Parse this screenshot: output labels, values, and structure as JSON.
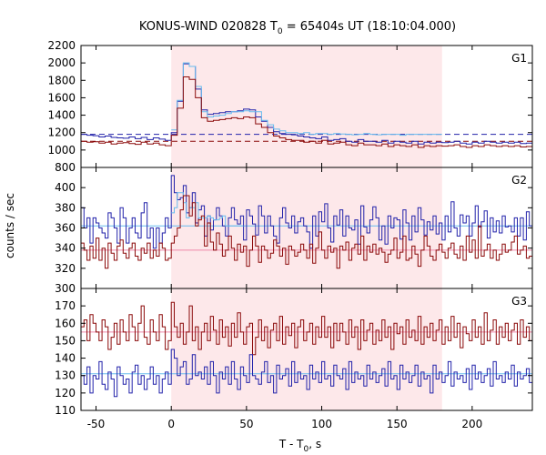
{
  "chart_data": {
    "type": "line",
    "title": {
      "prefix": "KONUS-WIND 020828 T",
      "sub": "0",
      "suffix": " = 65404s UT (18:10:04.000)"
    },
    "xlabel": {
      "prefix": "T - T",
      "sub": "0",
      "suffix": ", s"
    },
    "ylabel": "counts / sec",
    "xlim": [
      -60,
      240
    ],
    "xticks": [
      -50,
      0,
      50,
      100,
      150,
      200
    ],
    "highlight_interval": [
      0,
      180
    ],
    "colors": {
      "dark_red": "#8b0a0a",
      "navy": "#2222aa",
      "light_blue": "#66bbee",
      "pink_line": "#ee88aa",
      "highlight": "#fde8ea"
    },
    "panels": [
      {
        "label": "G1",
        "ylim": [
          800,
          2200
        ],
        "yticks": [
          800,
          1000,
          1200,
          1400,
          1600,
          1800,
          2000,
          2200
        ],
        "background_levels": [
          {
            "value": 1180,
            "color": "navy"
          },
          {
            "value": 1100,
            "color": "dark_red"
          }
        ],
        "bin_width": 4,
        "series": [
          {
            "color": "navy",
            "step_start": -60,
            "values": [
              1180,
              1170,
              1165,
              1150,
              1160,
              1145,
              1140,
              1135,
              1150,
              1130,
              1145,
              1120,
              1140,
              1125,
              1110,
              1200,
              1560,
              1990,
              1960,
              1700,
              1460,
              1410,
              1420,
              1430,
              1440,
              1440,
              1450,
              1470,
              1460,
              1380,
              1330,
              1260,
              1210,
              1190,
              1180,
              1175,
              1160,
              1150,
              1140,
              1130,
              1150,
              1110,
              1120,
              1130,
              1100,
              1090,
              1120,
              1100,
              1100,
              1090,
              1110,
              1080,
              1100,
              1090,
              1080,
              1100,
              1070,
              1090,
              1080,
              1090,
              1085,
              1090,
              1100,
              1080,
              1070,
              1090,
              1080,
              1100,
              1090,
              1080,
              1090,
              1080,
              1090,
              1075,
              1080
            ]
          },
          {
            "color": "light_blue",
            "step_start": 0,
            "values": [
              1230,
              1570,
              2000,
              1960,
              1730,
              1440,
              1380,
              1390,
              1400,
              1420,
              1440,
              1440,
              1450,
              1440,
              1440,
              1340,
              1290,
              1240,
              1220,
              1200,
              1200,
              1190,
              1200,
              1180,
              1190,
              1190,
              1180,
              1190,
              1185,
              1180,
              1175,
              1180,
              1190,
              1180,
              1175,
              1180,
              1180,
              1180,
              1170,
              1180,
              1180,
              1180,
              1180,
              1180,
              1180
            ]
          },
          {
            "color": "dark_red",
            "step_start": -60,
            "values": [
              1100,
              1090,
              1095,
              1080,
              1090,
              1070,
              1080,
              1085,
              1075,
              1065,
              1090,
              1070,
              1080,
              1060,
              1050,
              1170,
              1480,
              1840,
              1810,
              1600,
              1370,
              1330,
              1340,
              1350,
              1360,
              1370,
              1360,
              1380,
              1370,
              1300,
              1260,
              1200,
              1160,
              1140,
              1120,
              1110,
              1110,
              1090,
              1100,
              1080,
              1110,
              1070,
              1080,
              1090,
              1060,
              1050,
              1080,
              1060,
              1060,
              1050,
              1070,
              1040,
              1060,
              1050,
              1040,
              1060,
              1030,
              1050,
              1040,
              1050,
              1045,
              1050,
              1060,
              1040,
              1030,
              1050,
              1040,
              1060,
              1050,
              1040,
              1050,
              1040,
              1050,
              1035,
              1040
            ]
          }
        ]
      },
      {
        "label": "G2",
        "ylim": [
          300,
          420
        ],
        "yticks": [
          300,
          320,
          340,
          360,
          380,
          400
        ],
        "background_levels": [
          {
            "value": 362,
            "color": "light_blue"
          },
          {
            "value": 338,
            "color": "pink_line"
          }
        ],
        "bin_width": 2,
        "series": [
          {
            "color": "navy",
            "step_start": -60,
            "values": [
              380,
              360,
              370,
              345,
              370,
              365,
              360,
              355,
              350,
              375,
              370,
              360,
              345,
              380,
              370,
              345,
              360,
              370,
              355,
              350,
              375,
              385,
              350,
              360,
              340,
              360,
              345,
              355,
              370,
              360,
              412,
              395,
              388,
              390,
              402,
              375,
              380,
              395,
              365,
              378,
              382,
              352,
              372,
              358,
              368,
              380,
              372,
              362,
              352,
              370,
              380,
              368,
              364,
              372,
              348,
              378,
              372,
              364,
              353,
              382,
              372,
              355,
              372,
              362,
              352,
              345,
              370,
              380,
              365,
              360,
              372,
              355,
              366,
              370,
              362,
              356,
              340,
              372,
              352,
              376,
              366,
              384,
              360,
              346,
              372,
              363,
              378,
              352,
              372,
              360,
              358,
              368,
              344,
              382,
              361,
              355,
              368,
              381,
              370,
              348,
              362,
              344,
              372,
              360,
              370,
              368,
              349,
              378,
              365,
              348,
              372,
              356,
              380,
              368,
              353,
              366,
              358,
              372,
              354,
              365,
              348,
              372,
              356,
              386,
              360,
              352,
              373,
              365,
              372,
              352,
              365,
              382,
              361,
              366,
              377,
              350,
              370,
              356,
              367,
              355,
              372,
              361,
              362,
              356,
              370,
              352,
              370,
              348,
              376,
              362
            ]
          },
          {
            "color": "light_blue",
            "step_start": 0,
            "values": [
              375,
              380,
              395,
              395,
              385,
              370,
              380,
              380,
              385,
              370,
              370,
              370,
              372,
              370,
              368,
              368,
              370,
              372,
              362,
              362,
              362,
              362,
              362,
              362
            ]
          },
          {
            "color": "dark_red",
            "step_start": -60,
            "values": [
              345,
              338,
              328,
              342,
              330,
              350,
              328,
              340,
              320,
              345,
              335,
              328,
              342,
              348,
              335,
              330,
              340,
              345,
              332,
              328,
              340,
              335,
              345,
              330,
              338,
              332,
              345,
              340,
              328,
              330,
              345,
              352,
              360,
              378,
              392,
              392,
              372,
              385,
              362,
              368,
              372,
              342,
              365,
              346,
              338,
              355,
              344,
              332,
              338,
              352,
              340,
              328,
              344,
              336,
              342,
              322,
              338,
              352,
              342,
              326,
              342,
              338,
              330,
              335,
              348,
              342,
              332,
              340,
              324,
              342,
              338,
              332,
              336,
              344,
              338,
              330,
              344,
              325,
              340,
              356,
              338,
              330,
              342,
              336,
              340,
              320,
              342,
              338,
              346,
              328,
              340,
              344,
              334,
              352,
              328,
              342,
              336,
              344,
              334,
              340,
              336,
              326,
              334,
              338,
              350,
              330,
              336,
              352,
              328,
              330,
              342,
              334,
              322,
              338,
              352,
              342,
              332,
              328,
              338,
              344,
              336,
              330,
              340,
              345,
              334,
              330,
              342,
              328,
              352,
              336,
              348,
              330,
              362,
              332,
              338,
              344,
              330,
              338,
              328,
              334,
              344,
              336,
              338,
              346,
              352,
              334,
              338,
              342,
              330,
              332
            ]
          }
        ]
      },
      {
        "label": "G3",
        "ylim": [
          110,
          180
        ],
        "yticks": [
          110,
          120,
          130,
          140,
          150,
          160,
          170
        ],
        "background_levels": [
          {
            "value": 155,
            "color": "pink_line"
          },
          {
            "value": 131,
            "color": "light_blue"
          }
        ],
        "bin_width": 2,
        "series": [
          {
            "color": "dark_red",
            "step_start": -60,
            "values": [
              158,
              162,
              150,
              165,
              160,
              155,
              150,
              162,
              158,
              145,
              152,
              160,
              148,
              162,
              155,
              150,
              165,
              158,
              150,
              160,
              170,
              152,
              148,
              162,
              155,
              150,
              165,
              158,
              145,
              150,
              172,
              158,
              152,
              160,
              148,
              155,
              170,
              150,
              158,
              145,
              155,
              160,
              150,
              164,
              156,
              148,
              162,
              152,
              158,
              147,
              160,
              152,
              166,
              155,
              148,
              158,
              160,
              142,
              152,
              162,
              150,
              158,
              146,
              156,
              160,
              150,
              164,
              148,
              158,
              153,
              160,
              146,
              158,
              162,
              150,
              155,
              160,
              148,
              158,
              152,
              164,
              152,
              158,
              146,
              160,
              150,
              160,
              155,
              148,
              162,
              152,
              158,
              145,
              162,
              150,
              156,
              160,
              148,
              156,
              150,
              162,
              152,
              158,
              145,
              160,
              154,
              158,
              148,
              162,
              152,
              156,
              150,
              164,
              148,
              158,
              152,
              160,
              150,
              156,
              162,
              148,
              158,
              150,
              164,
              152,
              160,
              146,
              158,
              154,
              150,
              162,
              152,
              158,
              148,
              166,
              150,
              156,
              162,
              148,
              158,
              152,
              160,
              150,
              156,
              160,
              148,
              162,
              152,
              158,
              150
            ]
          },
          {
            "color": "navy",
            "step_start": -60,
            "values": [
              130,
              125,
              135,
              120,
              130,
              128,
              138,
              125,
              122,
              132,
              128,
              118,
              135,
              130,
              125,
              128,
              120,
              132,
              136,
              125,
              130,
              122,
              128,
              135,
              125,
              130,
              120,
              128,
              132,
              125,
              145,
              140,
              130,
              135,
              138,
              125,
              128,
              142,
              130,
              132,
              128,
              135,
              125,
              138,
              130,
              120,
              132,
              128,
              135,
              125,
              138,
              128,
              122,
              135,
              130,
              126,
              142,
              130,
              128,
              125,
              132,
              138,
              126,
              130,
              120,
              136,
              128,
              130,
              134,
              124,
              138,
              126,
              132,
              128,
              130,
              122,
              136,
              128,
              132,
              126,
              138,
              128,
              130,
              124,
              136,
              130,
              128,
              134,
              122,
              138,
              126,
              132,
              128,
              130,
              124,
              136,
              128,
              132,
              126,
              130,
              134,
              124,
              138,
              128,
              130,
              122,
              136,
              128,
              132,
              126,
              130,
              136,
              124,
              132,
              128,
              130,
              120,
              136,
              128,
              132,
              126,
              130,
              138,
              124,
              132,
              128,
              130,
              126,
              134,
              122,
              136,
              128,
              132,
              126,
              130,
              134,
              124,
              138,
              128,
              130,
              126,
              132,
              128,
              136,
              124,
              132,
              128,
              130,
              134,
              126
            ]
          }
        ]
      }
    ]
  }
}
